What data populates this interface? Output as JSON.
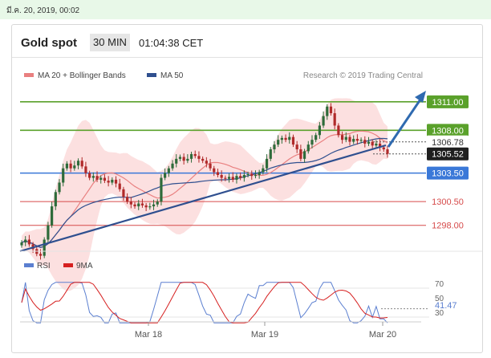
{
  "datetime": "มี.ค. 20, 2019, 00:02",
  "header": {
    "title": "Gold spot",
    "timeframe": "30 MIN",
    "time": "01:04:38 CET"
  },
  "legend": {
    "bollinger": "MA 20 + Bollinger Bands",
    "ma50": "MA 50",
    "credit": "Research © 2019 Trading Central"
  },
  "colors": {
    "up": "#2e6b3a",
    "down": "#b02a2a",
    "ma20": "#e98080",
    "ma50": "#2f4f8f",
    "green_level": "#5aa12b",
    "blue_level": "#3a78d8",
    "red_level": "#d64a4a",
    "rsi": "#5b7fd0",
    "ma9": "#d62020"
  },
  "levels": [
    {
      "value": "1311.00",
      "kind": "resistance"
    },
    {
      "value": "1308.00",
      "kind": "resistance"
    },
    {
      "value": "1306.78",
      "kind": "marker"
    },
    {
      "value": "1305.52",
      "kind": "last"
    },
    {
      "value": "1303.50",
      "kind": "pivot"
    },
    {
      "value": "1300.50",
      "kind": "support"
    },
    {
      "value": "1298.00",
      "kind": "support"
    }
  ],
  "rsi_panel": {
    "rsi_label": "RSI",
    "ma_label": "9MA",
    "ticks": [
      "70",
      "50",
      "30"
    ],
    "value": "41.47"
  },
  "x_labels": [
    "Mar 18",
    "Mar 19",
    "Mar 20"
  ],
  "chart_data": {
    "type": "candlestick",
    "title": "Gold spot",
    "timeframe": "30 MIN",
    "ylim": [
      1294.6,
      1312.0
    ],
    "xlabels": [
      "Mar 18",
      "Mar 19",
      "Mar 20"
    ],
    "close": [
      1296.2,
      1296.5,
      1296.0,
      1295.5,
      1295.0,
      1294.8,
      1296.5,
      1298.0,
      1300.0,
      1301.5,
      1302.5,
      1304.0,
      1304.5,
      1304.0,
      1304.3,
      1304.8,
      1304.2,
      1303.5,
      1303.0,
      1303.2,
      1302.8,
      1303.0,
      1302.7,
      1302.5,
      1302.8,
      1302.4,
      1301.8,
      1301.0,
      1300.5,
      1300.2,
      1300.0,
      1300.3,
      1300.1,
      1299.9,
      1300.0,
      1300.2,
      1300.5,
      1303.0,
      1303.5,
      1304.0,
      1304.5,
      1305.0,
      1305.2,
      1304.8,
      1305.0,
      1305.5,
      1305.3,
      1305.0,
      1304.8,
      1304.5,
      1304.0,
      1303.6,
      1303.3,
      1303.0,
      1302.9,
      1303.1,
      1302.8,
      1303.2,
      1303.0,
      1303.3,
      1303.4,
      1303.2,
      1303.3,
      1303.6,
      1304.0,
      1305.0,
      1306.0,
      1306.5,
      1307.0,
      1307.2,
      1307.0,
      1307.3,
      1306.5,
      1306.0,
      1305.0,
      1305.8,
      1306.5,
      1307.0,
      1307.5,
      1308.5,
      1309.5,
      1310.5,
      1309.8,
      1308.5,
      1307.5,
      1307.0,
      1307.3,
      1306.8,
      1307.1,
      1306.9,
      1307.0,
      1306.6,
      1306.8,
      1306.4,
      1306.6,
      1306.2,
      1306.0,
      1305.52
    ],
    "levels": [
      1311.0,
      1308.0,
      1306.78,
      1305.52,
      1303.5,
      1300.5,
      1298.0
    ],
    "last_price": 1305.52,
    "rsi": {
      "ticks": [
        70,
        50,
        30
      ],
      "last": 41.47
    }
  }
}
